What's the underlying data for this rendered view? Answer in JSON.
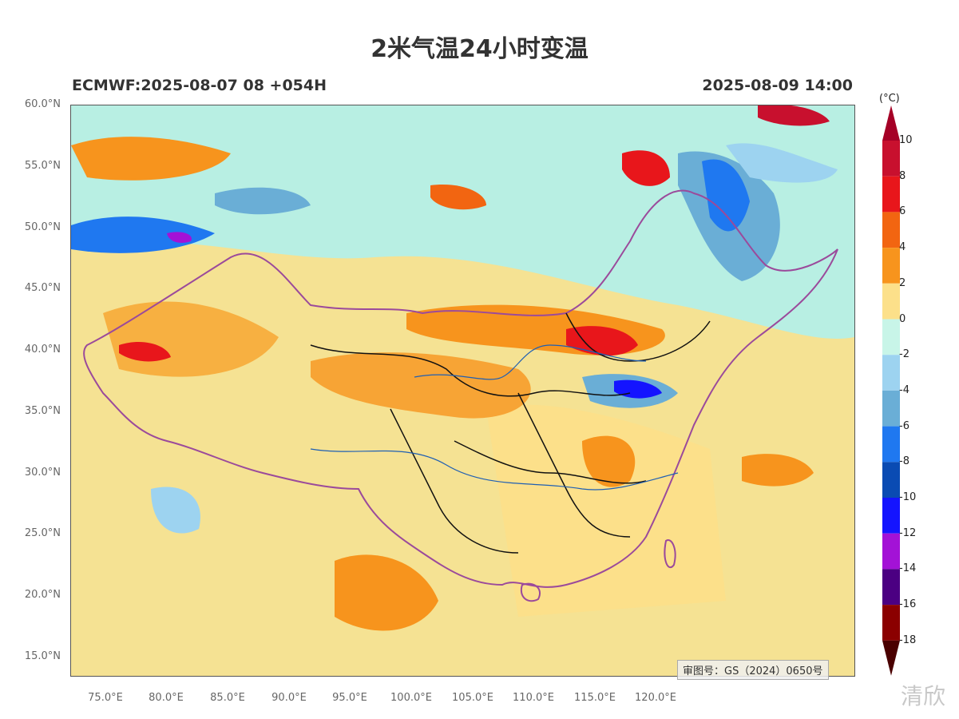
{
  "header": {
    "title": "2米气温24小时变温",
    "model_run": "ECMWF:2025-08-07 08 +054H",
    "valid_time": "2025-08-09 14:00"
  },
  "map": {
    "lat_labels": [
      "60.0°N",
      "55.0°N",
      "50.0°N",
      "45.0°N",
      "40.0°N",
      "35.0°N",
      "30.0°N",
      "25.0°N",
      "20.0°N",
      "15.0°N"
    ],
    "lon_labels": [
      "75.0°E",
      "80.0°E",
      "85.0°E",
      "90.0°E",
      "95.0°E",
      "100.0°E",
      "105.0°E",
      "110.0°E",
      "115.0°E",
      "120.0°E"
    ],
    "approval_number": "审图号：GS（2024）0650号"
  },
  "colorbar": {
    "unit": "(°C)",
    "levels": [
      "10",
      "8",
      "6",
      "4",
      "2",
      "0",
      "-2",
      "-4",
      "-6",
      "-8",
      "-10",
      "-12",
      "-14",
      "-16",
      "-18"
    ],
    "colors": [
      "#a50026",
      "#c8102e",
      "#e8161b",
      "#f26511",
      "#f7941d",
      "#fce08a",
      "#c8f5e8",
      "#9dd3f0",
      "#6aaed6",
      "#1f78f0",
      "#0a4bb3",
      "#1414ff",
      "#a312d6",
      "#4b0082",
      "#8b0000",
      "#4a0000"
    ]
  },
  "watermark": {
    "text": "清欣"
  }
}
